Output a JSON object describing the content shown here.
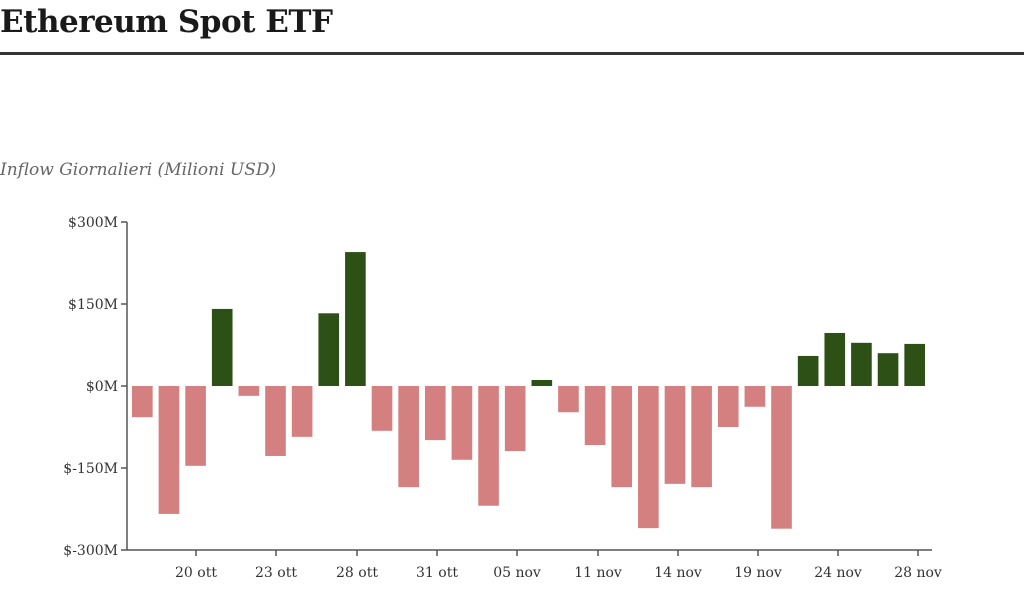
{
  "header": {
    "title": "Ethereum Spot ETF"
  },
  "chart": {
    "subtitle": "Inflow Giornalieri (Milioni USD)"
  },
  "colors": {
    "positive": "#2d5016",
    "negative": "#d48080",
    "axis": "#555555"
  },
  "chart_data": {
    "type": "bar",
    "title": "Ethereum Spot ETF",
    "subtitle": "Inflow Giornalieri (Milioni USD)",
    "xlabel": "",
    "ylabel": "Inflow Giornalieri (Milioni USD)",
    "ylim": [
      -300,
      300
    ],
    "yticks": [
      300,
      150,
      0,
      -150,
      -300
    ],
    "ytick_labels": [
      "$300M",
      "$150M",
      "$0M",
      "$-150M",
      "$-300M"
    ],
    "xtick_labels": [
      "20 ott",
      "23 ott",
      "28 ott",
      "31 ott",
      "05 nov",
      "11 nov",
      "14 nov",
      "19 nov",
      "24 nov",
      "28 nov"
    ],
    "grid": false,
    "legend": null,
    "values": [
      -57,
      -234,
      -146,
      141,
      -18,
      -128,
      -93,
      133,
      245,
      -82,
      -185,
      -99,
      -135,
      -219,
      -119,
      11,
      -48,
      -108,
      -185,
      -260,
      -179,
      -185,
      -75,
      -38,
      -261,
      55,
      97,
      79,
      60,
      77
    ]
  }
}
